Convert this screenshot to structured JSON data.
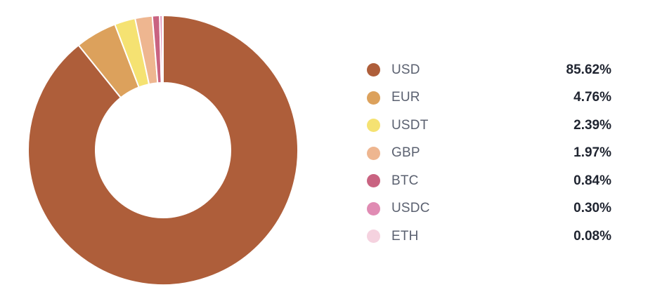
{
  "chart_data": {
    "type": "pie",
    "donut": true,
    "legend_placement": "right",
    "slices": [
      {
        "label": "USD",
        "value": 85.62,
        "display": "85.62%",
        "color": "#ae5e3a"
      },
      {
        "label": "EUR",
        "value": 4.76,
        "display": "4.76%",
        "color": "#dca15c"
      },
      {
        "label": "USDT",
        "value": 2.39,
        "display": "2.39%",
        "color": "#f5e272"
      },
      {
        "label": "GBP",
        "value": 1.97,
        "display": "1.97%",
        "color": "#eeb690"
      },
      {
        "label": "BTC",
        "value": 0.84,
        "display": "0.84%",
        "color": "#c96381"
      },
      {
        "label": "USDC",
        "value": 0.3,
        "display": "0.30%",
        "color": "#e08bb3"
      },
      {
        "label": "ETH",
        "value": 0.08,
        "display": "0.08%",
        "color": "#f5d2df"
      }
    ]
  }
}
